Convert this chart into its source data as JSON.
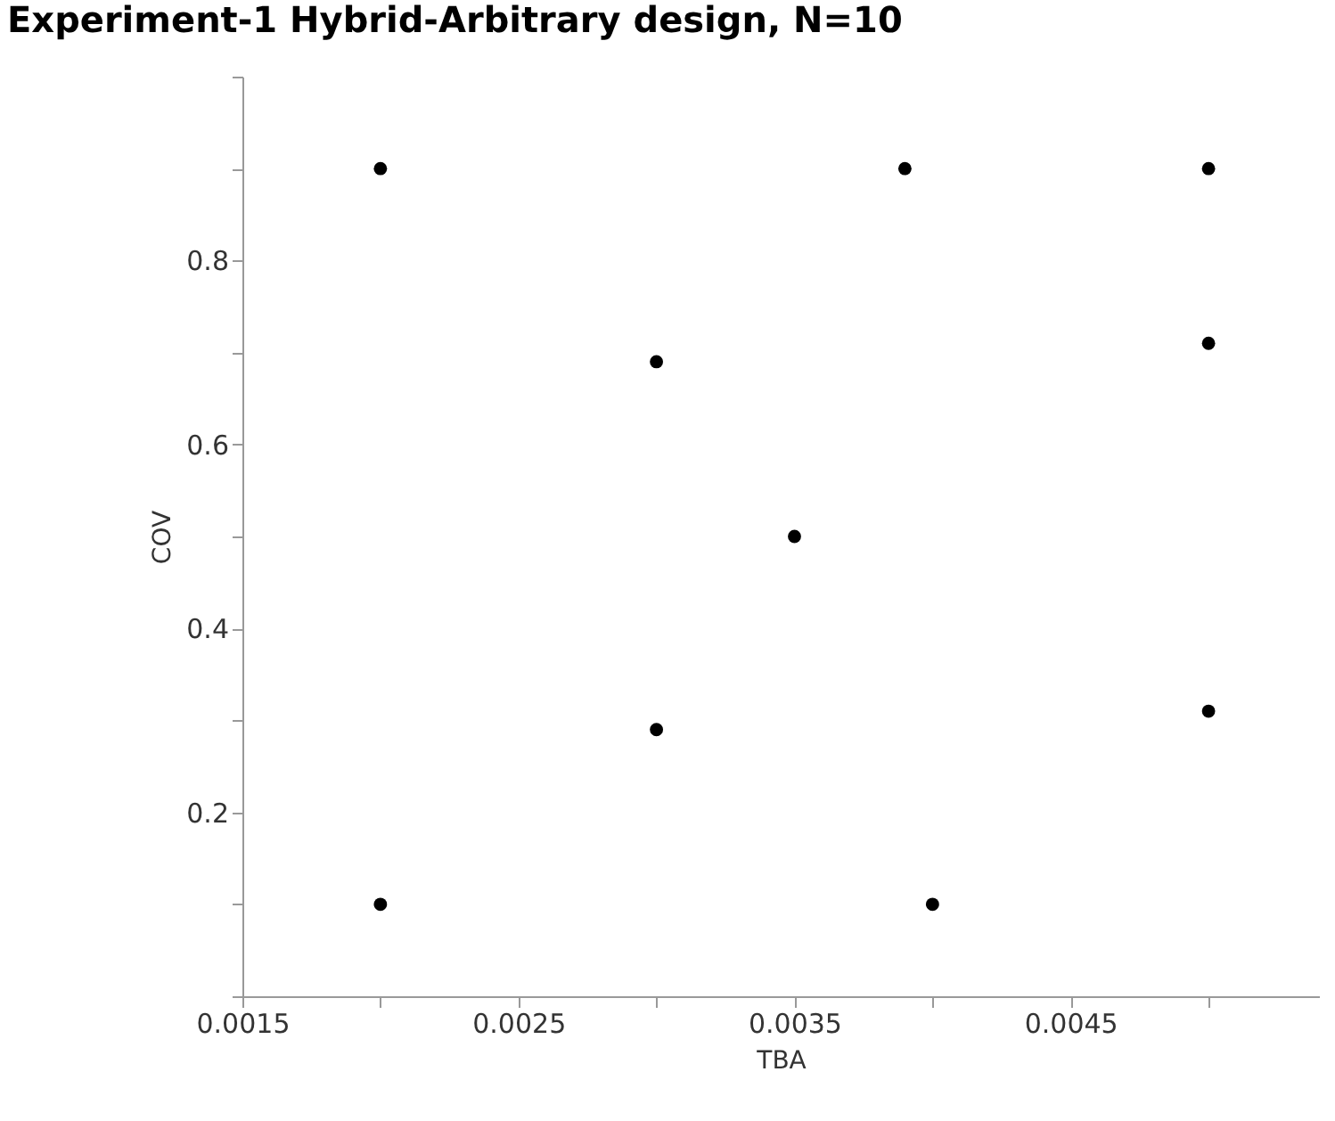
{
  "chart_data": {
    "type": "scatter",
    "title": "Experiment-1 Hybrid-Arbitrary design, N=10",
    "xlabel": "TBA",
    "ylabel": "COV",
    "x": [
      0.002,
      0.0039,
      0.005,
      0.003,
      0.005,
      0.0035,
      0.003,
      0.005,
      0.002,
      0.004
    ],
    "series": [
      {
        "color": "#000000",
        "values": [
          0.9,
          0.9,
          0.9,
          0.69,
          0.71,
          0.5,
          0.29,
          0.31,
          0.1,
          0.1
        ]
      }
    ],
    "xlim": [
      0.0015,
      0.0054
    ],
    "xticks": [
      0.0015,
      {
        "value": 0.002,
        "label": null
      },
      0.0025,
      {
        "value": 0.003,
        "label": null
      },
      0.0035,
      {
        "value": 0.004,
        "label": null
      },
      0.0045,
      {
        "value": 0.005,
        "label": null
      }
    ],
    "ylim": [
      0,
      1
    ],
    "yticks": [
      {
        "value": 0,
        "label": null
      },
      {
        "value": 0.1,
        "label": null
      },
      0.2,
      {
        "value": 0.3,
        "label": null
      },
      0.4,
      {
        "value": 0.5,
        "label": null
      },
      0.6,
      {
        "value": 0.7,
        "label": null
      },
      0.8,
      {
        "value": 0.9,
        "label": null
      },
      {
        "value": 1,
        "label": null
      }
    ],
    "marker": "circle",
    "grid": false,
    "legend": false
  }
}
